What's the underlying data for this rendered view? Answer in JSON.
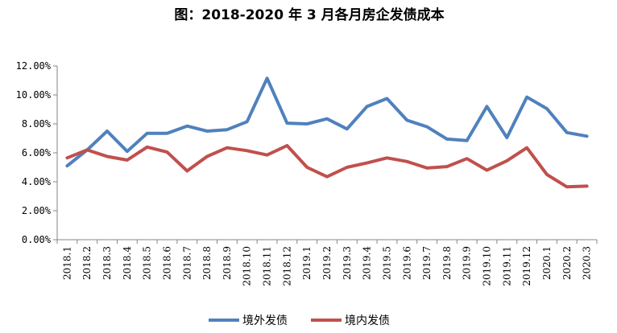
{
  "chart_data": {
    "type": "line",
    "title": "图：2018-2020 年 3 月各月房企发债成本",
    "xlabel": "",
    "ylabel": "",
    "ylim": [
      0,
      12
    ],
    "ytick_labels": [
      "0.00%",
      "2.00%",
      "4.00%",
      "6.00%",
      "8.00%",
      "10.00%",
      "12.00%"
    ],
    "ytick_values": [
      0,
      2,
      4,
      6,
      8,
      10,
      12
    ],
    "grid": false,
    "legend_position": "bottom",
    "categories": [
      "2018.1",
      "2018.2",
      "2018.3",
      "2018.4",
      "2018.5",
      "2018.6",
      "2018.7",
      "2018.8",
      "2018.9",
      "2018.10",
      "2018.11",
      "2018.12",
      "2019.1",
      "2019.2",
      "2019.3",
      "2019.4",
      "2019.5",
      "2019.6",
      "2019.7",
      "2019.8",
      "2019.9",
      "2019.10",
      "2019.11",
      "2019.12",
      "2020.1",
      "2020.2",
      "2020.3"
    ],
    "series": [
      {
        "name": "境外发债",
        "color": "#4F81BD",
        "values": [
          5.1,
          6.2,
          7.5,
          6.1,
          7.35,
          7.35,
          7.85,
          7.5,
          7.6,
          8.15,
          11.15,
          8.05,
          8.0,
          8.35,
          7.65,
          9.2,
          9.75,
          8.25,
          7.8,
          6.95,
          6.85,
          9.2,
          7.05,
          9.85,
          9.05,
          7.4,
          7.15
        ]
      },
      {
        "name": "境内发债",
        "color": "#C0504D",
        "values": [
          5.65,
          6.2,
          5.75,
          5.5,
          6.4,
          6.05,
          4.75,
          5.75,
          6.35,
          6.15,
          5.85,
          6.5,
          5.0,
          4.35,
          5.0,
          5.3,
          5.65,
          5.4,
          4.95,
          5.05,
          5.6,
          4.8,
          5.45,
          6.35,
          4.5,
          3.65,
          3.7
        ]
      }
    ]
  }
}
